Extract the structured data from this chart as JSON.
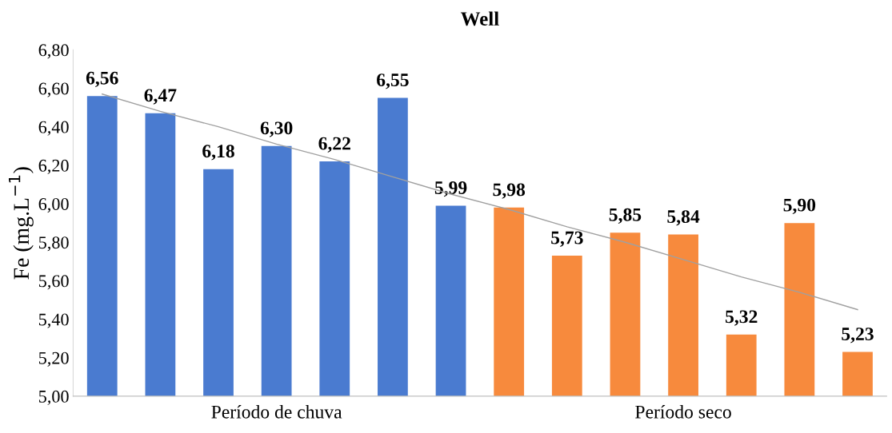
{
  "chart_data": {
    "type": "bar",
    "title": "Well",
    "ylabel": "Fe (mg.L$^{−1}$)",
    "categories": [
      null,
      null,
      null,
      "Período de chuva",
      null,
      null,
      null,
      null,
      null,
      null,
      "Período seco",
      null,
      null,
      null
    ],
    "series": [
      {
        "values": [
          6.56,
          6.47,
          6.18,
          6.3,
          6.22,
          6.55,
          5.99,
          5.98,
          5.73,
          5.85,
          5.84,
          5.32,
          5.9,
          5.23
        ],
        "colors": [
          "#4a7bd0",
          "#4a7bd0",
          "#4a7bd0",
          "#4a7bd0",
          "#4a7bd0",
          "#4a7bd0",
          "#4a7bd0",
          "#f78a3d",
          "#f78a3d",
          "#f78a3d",
          "#f78a3d",
          "#f78a3d",
          "#f78a3d",
          "#f78a3d"
        ],
        "value_labels": [
          "6,56",
          "6,47",
          "6,18",
          "6,30",
          "6,22",
          "6,55",
          "5,99",
          "5,98",
          "5,73",
          "5,85",
          "5,84",
          "5,32",
          "5,90",
          "5,23"
        ]
      },
      {
        "type": "line",
        "color": "#a0a0a0",
        "values": [
          6.57,
          6.48,
          6.4,
          6.31,
          6.23,
          6.14,
          6.05,
          5.97,
          5.88,
          5.8,
          5.71,
          5.62,
          5.54,
          5.45
        ]
      }
    ],
    "ylim": [
      5.0,
      6.8
    ],
    "yticks": [
      {
        "value": 5.0,
        "label": "5,00"
      },
      {
        "value": 5.2,
        "label": "5,20"
      },
      {
        "value": 5.4,
        "label": "5,40"
      },
      {
        "value": 5.6,
        "label": "5,60"
      },
      {
        "value": 5.8,
        "label": "5,80"
      },
      {
        "value": 6.0,
        "label": "6,00"
      },
      {
        "value": 6.2,
        "label": "6,20"
      },
      {
        "value": 6.4,
        "label": "6,40"
      },
      {
        "value": 6.6,
        "label": "6,60"
      },
      {
        "value": 6.8,
        "label": "6,80"
      }
    ],
    "grid": false,
    "legend": false
  }
}
